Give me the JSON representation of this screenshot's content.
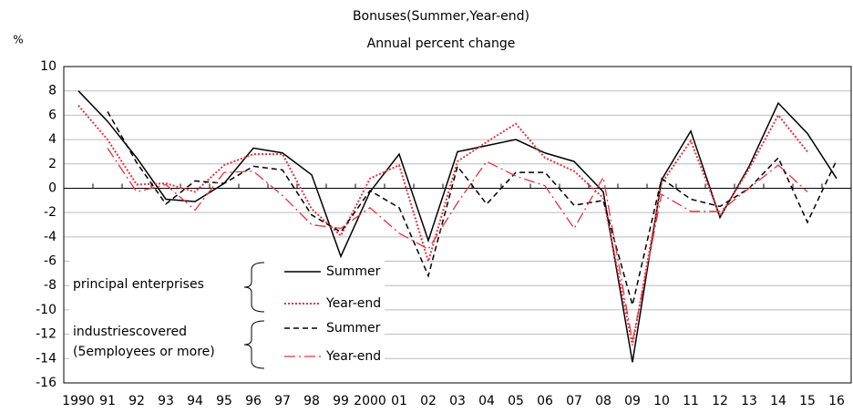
{
  "chart_data": {
    "type": "line",
    "title": "Bonuses(Summer,Year-end)",
    "subtitle": "Annual percent change",
    "y_label": "%",
    "categories": [
      "1990",
      "91",
      "92",
      "93",
      "94",
      "95",
      "96",
      "97",
      "98",
      "99",
      "2000",
      "01",
      "02",
      "03",
      "04",
      "05",
      "06",
      "07",
      "08",
      "09",
      "10",
      "11",
      "12",
      "13",
      "14",
      "15",
      "16"
    ],
    "series": [
      {
        "name": "Summer",
        "color": "#000000",
        "style": "solid",
        "values": [
          8,
          5.5,
          2.5,
          -0.9,
          -1.1,
          0.4,
          3.3,
          2.9,
          1.1,
          -5.6,
          -0.3,
          2.8,
          -4.3,
          3.0,
          3.5,
          4.0,
          2.9,
          2.2,
          -0.3,
          -14.3,
          0.7,
          4.7,
          -2.4,
          1.8,
          7.0,
          4.5,
          0.8
        ]
      },
      {
        "name": "Year-end",
        "color": "#e8323c",
        "style": "dotted",
        "values": [
          6.8,
          4.0,
          0.3,
          0.4,
          -0.3,
          1.9,
          2.8,
          2.8,
          -1.7,
          -3.9,
          0.8,
          1.9,
          -6.0,
          2.2,
          3.8,
          5.3,
          2.5,
          1.4,
          -0.8,
          -12.9,
          0.4,
          3.9,
          -2.3,
          1.6,
          6.0,
          3.0,
          null
        ]
      },
      {
        "name": "Summer",
        "color": "#000000",
        "style": "dashed",
        "values": [
          null,
          6.3,
          2.1,
          -1.3,
          0.6,
          0.4,
          1.8,
          1.5,
          -2.2,
          -3.6,
          -0.2,
          -1.6,
          -7.2,
          1.8,
          -1.3,
          1.3,
          1.3,
          -1.4,
          -1.0,
          -9.6,
          0.8,
          -0.9,
          -1.5,
          0.0,
          2.5,
          -2.8,
          2.3
        ]
      },
      {
        "name": "Year-end",
        "color": "#e8323c",
        "style": "dashdot",
        "values": [
          null,
          3.3,
          -0.3,
          0.3,
          -1.8,
          1.3,
          1.4,
          -0.6,
          -3.0,
          -3.3,
          -1.6,
          -3.7,
          -5.0,
          -1.2,
          2.2,
          1.0,
          0.2,
          -3.3,
          0.9,
          -12.6,
          -0.5,
          -1.9,
          -1.9,
          0.0,
          1.9,
          -0.3,
          null
        ]
      }
    ],
    "legend_groups": [
      "principal enterprises",
      "industriescovered",
      "(5employees or more)"
    ],
    "ylim": [
      -16,
      10
    ],
    "yticks": [
      -16,
      -14,
      -12,
      -10,
      -8,
      -6,
      -4,
      -2,
      0,
      2,
      4,
      6,
      8,
      10
    ],
    "grid": true
  }
}
